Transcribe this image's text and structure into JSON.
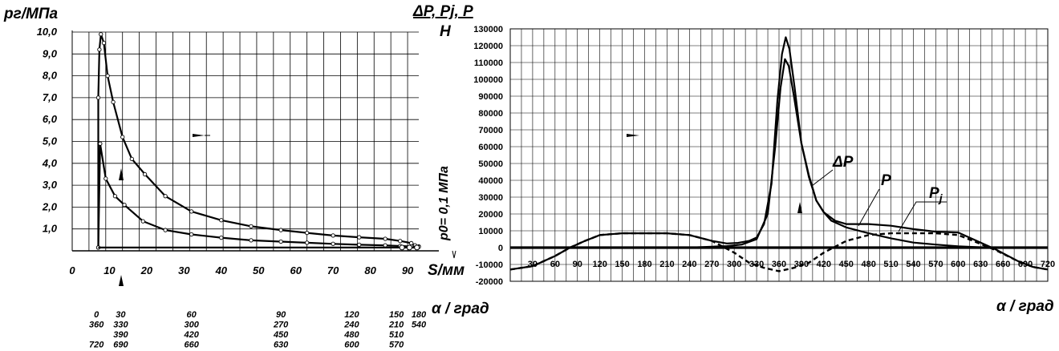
{
  "chart_data": [
    {
      "type": "line",
      "ylabel": "pг/МПа",
      "xlabel": "S/мм",
      "y_ticks": [
        "10,0",
        "9,0",
        "8,0",
        "7,0",
        "6,0",
        "5,0",
        "4,0",
        "3,0",
        "2,0",
        "1,0"
      ],
      "x_ticks": [
        "0",
        "10",
        "20",
        "30",
        "40",
        "50",
        "60",
        "70",
        "80",
        "90"
      ],
      "xlim": [
        0,
        93
      ],
      "ylim": [
        0,
        10
      ],
      "annotation": "p0= 0,1 МПа",
      "angle_label": "α / град",
      "angle_ticks": [
        {
          "s": 6.5,
          "lines": [
            "0",
            "360",
            "",
            "720"
          ]
        },
        {
          "s": 13,
          "lines": [
            "30",
            "330",
            "390",
            "690"
          ]
        },
        {
          "s": 32,
          "lines": [
            "60",
            "300",
            "420",
            "660"
          ]
        },
        {
          "s": 56,
          "lines": [
            "90",
            "270",
            "450",
            "630"
          ]
        },
        {
          "s": 75,
          "lines": [
            "120",
            "240",
            "480",
            "600"
          ]
        },
        {
          "s": 87,
          "lines": [
            "150",
            "210",
            "510",
            "570"
          ]
        },
        {
          "s": 93,
          "lines": [
            "180",
            "540",
            "",
            ""
          ]
        }
      ],
      "series": [
        {
          "values": [
            [
              7,
              0.15
            ],
            [
              7,
              7.0
            ],
            [
              7.3,
              9.2
            ],
            [
              7.7,
              9.9
            ],
            [
              8.5,
              9.5
            ],
            [
              9.5,
              8.0
            ],
            [
              11,
              6.8
            ],
            [
              13.5,
              5.2
            ],
            [
              16,
              4.2
            ],
            [
              19.5,
              3.5
            ],
            [
              25,
              2.5
            ],
            [
              32,
              1.8
            ],
            [
              40,
              1.4
            ],
            [
              48,
              1.12
            ],
            [
              56,
              0.95
            ],
            [
              63,
              0.82
            ],
            [
              70,
              0.7
            ],
            [
              77,
              0.62
            ],
            [
              84,
              0.55
            ],
            [
              88,
              0.45
            ],
            [
              91,
              0.35
            ],
            [
              92,
              0.25
            ],
            [
              93,
              0.2
            ]
          ]
        },
        {
          "values": [
            [
              7,
              0.15
            ],
            [
              7.5,
              4.9
            ],
            [
              9,
              3.3
            ],
            [
              11.5,
              2.5
            ],
            [
              14,
              2.1
            ],
            [
              19,
              1.35
            ],
            [
              25,
              0.95
            ],
            [
              32,
              0.75
            ],
            [
              40,
              0.6
            ],
            [
              48,
              0.48
            ],
            [
              56,
              0.42
            ],
            [
              63,
              0.37
            ],
            [
              70,
              0.32
            ],
            [
              77,
              0.28
            ],
            [
              84,
              0.25
            ],
            [
              88,
              0.22
            ],
            [
              91,
              0.2
            ],
            [
              93,
              0.18
            ]
          ]
        },
        {
          "values": [
            [
              7,
              0.15
            ],
            [
              93,
              0.15
            ]
          ]
        }
      ]
    },
    {
      "type": "line",
      "ylabel": "ΔP, Pj, P",
      "yunit": "H",
      "xlabel": "α / град",
      "xlim": [
        0,
        720
      ],
      "ylim": [
        -20000,
        130000
      ],
      "y_ticks": [
        "130000",
        "120000",
        "110000",
        "100000",
        "90000",
        "80000",
        "70000",
        "60000",
        "50000",
        "40000",
        "30000",
        "20000",
        "10000",
        "0",
        "-10000",
        "-20000"
      ],
      "x_ticks": [
        "30",
        "60",
        "90",
        "120",
        "150",
        "180",
        "210",
        "240",
        "270",
        "300",
        "330",
        "360",
        "390",
        "420",
        "450",
        "480",
        "510",
        "540",
        "570",
        "600",
        "630",
        "660",
        "690",
        "720"
      ],
      "series": [
        {
          "name": "ΔP",
          "style": "solid",
          "values": [
            [
              0,
              0
            ],
            [
              200,
              0
            ],
            [
              250,
              200
            ],
            [
              290,
              900
            ],
            [
              310,
              1800
            ],
            [
              330,
              5000
            ],
            [
              345,
              20000
            ],
            [
              355,
              60000
            ],
            [
              362,
              95000
            ],
            [
              368,
              112000
            ],
            [
              373,
              108000
            ],
            [
              380,
              90000
            ],
            [
              390,
              62000
            ],
            [
              400,
              42000
            ],
            [
              410,
              28000
            ],
            [
              420,
              21000
            ],
            [
              430,
              16000
            ],
            [
              450,
              12000
            ],
            [
              480,
              8500
            ],
            [
              510,
              5500
            ],
            [
              540,
              3000
            ],
            [
              570,
              1800
            ],
            [
              600,
              800
            ],
            [
              630,
              200
            ],
            [
              720,
              0
            ]
          ]
        },
        {
          "name": "Pj",
          "style": "dashed",
          "values": [
            [
              0,
              -13000
            ],
            [
              30,
              -11000
            ],
            [
              60,
              -5000
            ],
            [
              80,
              0
            ],
            [
              100,
              4000
            ],
            [
              120,
              7500
            ],
            [
              150,
              8500
            ],
            [
              180,
              8500
            ],
            [
              210,
              8500
            ],
            [
              240,
              7500
            ],
            [
              270,
              4000
            ],
            [
              300,
              -3000
            ],
            [
              320,
              -9000
            ],
            [
              340,
              -12000
            ],
            [
              360,
              -14000
            ],
            [
              380,
              -12000
            ],
            [
              400,
              -9000
            ],
            [
              420,
              -3000
            ],
            [
              450,
              4000
            ],
            [
              480,
              7500
            ],
            [
              510,
              8500
            ],
            [
              540,
              8500
            ],
            [
              570,
              8500
            ],
            [
              600,
              7500
            ],
            [
              620,
              4000
            ],
            [
              650,
              -1500
            ],
            [
              680,
              -8000
            ],
            [
              700,
              -11500
            ],
            [
              720,
              -13000
            ]
          ]
        },
        {
          "name": "P",
          "style": "solid",
          "values": [
            [
              0,
              -13000
            ],
            [
              30,
              -11000
            ],
            [
              60,
              -5000
            ],
            [
              80,
              0
            ],
            [
              100,
              4000
            ],
            [
              120,
              7500
            ],
            [
              150,
              8500
            ],
            [
              180,
              8500
            ],
            [
              210,
              8500
            ],
            [
              240,
              7500
            ],
            [
              270,
              4000
            ],
            [
              290,
              2500
            ],
            [
              305,
              2800
            ],
            [
              320,
              4000
            ],
            [
              330,
              6000
            ],
            [
              340,
              14000
            ],
            [
              350,
              38000
            ],
            [
              358,
              88000
            ],
            [
              364,
              115000
            ],
            [
              369,
              125000
            ],
            [
              374,
              118000
            ],
            [
              381,
              95000
            ],
            [
              390,
              62000
            ],
            [
              400,
              43000
            ],
            [
              410,
              28000
            ],
            [
              420,
              21000
            ],
            [
              435,
              16000
            ],
            [
              450,
              14000
            ],
            [
              480,
              14000
            ],
            [
              510,
              13000
            ],
            [
              540,
              11000
            ],
            [
              570,
              9500
            ],
            [
              600,
              9000
            ],
            [
              620,
              5000
            ],
            [
              650,
              -1000
            ],
            [
              680,
              -8000
            ],
            [
              700,
              -11500
            ],
            [
              720,
              -13000
            ]
          ]
        },
        {
          "name": "",
          "style": "bold",
          "values": [
            [
              0,
              0
            ],
            [
              720,
              0
            ]
          ]
        }
      ]
    }
  ]
}
